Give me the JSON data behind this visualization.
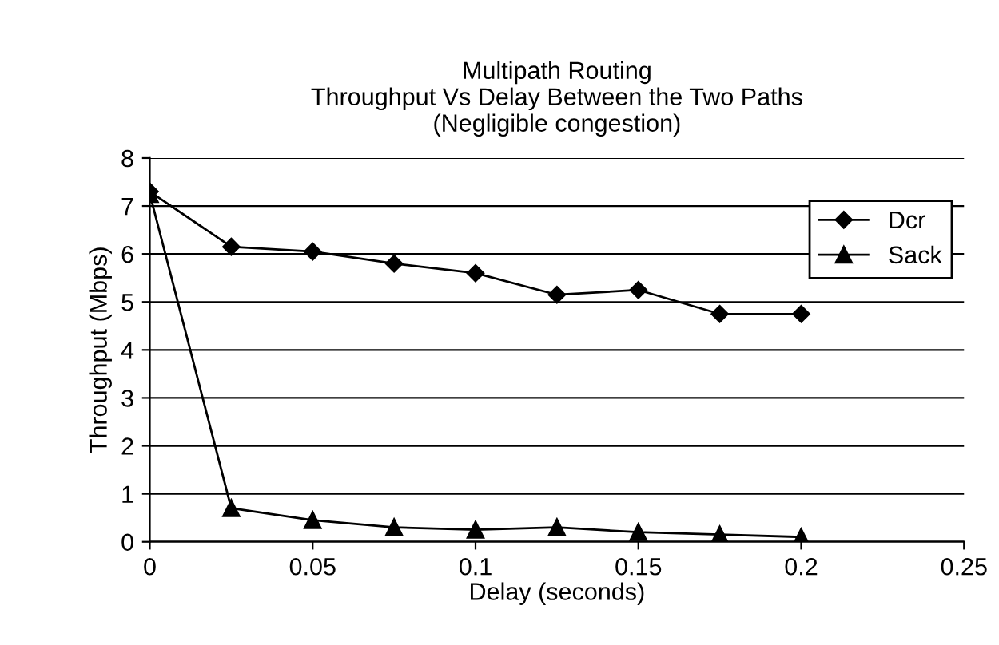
{
  "chart_data": {
    "type": "line",
    "title": "Multipath Routing\nThroughput Vs Delay Between the Two Paths\n(Negligible congestion)",
    "xlabel": "Delay (seconds)",
    "ylabel": "Throughput (Mbps)",
    "x": [
      0,
      0.025,
      0.05,
      0.075,
      0.1,
      0.125,
      0.15,
      0.175,
      0.2
    ],
    "series": [
      {
        "name": "Dcr",
        "color": "#000000",
        "marker": "diamond",
        "values": [
          7.3,
          6.15,
          6.05,
          5.8,
          5.6,
          5.15,
          5.25,
          4.75,
          4.75
        ]
      },
      {
        "name": "Sack",
        "color": "#000000",
        "marker": "triangle",
        "values": [
          7.25,
          0.7,
          0.45,
          0.3,
          0.25,
          0.3,
          0.2,
          0.15,
          0.1
        ]
      }
    ],
    "xlim": [
      0,
      0.25
    ],
    "xticks": [
      0,
      0.05,
      0.1,
      0.15,
      0.2,
      0.25
    ],
    "ylim": [
      0,
      8
    ],
    "yticks": [
      0,
      1,
      2,
      3,
      4,
      5,
      6,
      7,
      8
    ],
    "grid": "y",
    "legend": "top right",
    "line_style": "solid"
  }
}
